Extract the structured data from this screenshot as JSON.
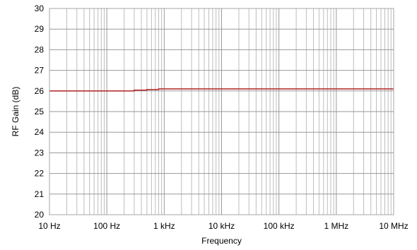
{
  "chart_data": {
    "type": "line",
    "title": "",
    "xlabel": "Frequency",
    "ylabel": "RF Gain (dB)",
    "x_scale": "log",
    "xlim": [
      10,
      10000000
    ],
    "ylim": [
      20,
      30
    ],
    "grid": true,
    "x_ticks": [
      {
        "value": 10,
        "label": "10 Hz"
      },
      {
        "value": 100,
        "label": "100 Hz"
      },
      {
        "value": 1000,
        "label": "1 kHz"
      },
      {
        "value": 10000,
        "label": "10 kHz"
      },
      {
        "value": 100000,
        "label": "100 kHz"
      },
      {
        "value": 1000000,
        "label": "1 MHz"
      },
      {
        "value": 10000000,
        "label": "10 MHz"
      }
    ],
    "y_ticks": [
      "20",
      "21",
      "22",
      "23",
      "24",
      "25",
      "26",
      "27",
      "28",
      "29",
      "30"
    ],
    "series": [
      {
        "color": "#b22222",
        "x": [
          10,
          300,
          300,
          500,
          500,
          800,
          800,
          10000000
        ],
        "y": [
          26.0,
          26.0,
          26.04,
          26.04,
          26.07,
          26.07,
          26.1,
          26.1
        ]
      }
    ]
  }
}
